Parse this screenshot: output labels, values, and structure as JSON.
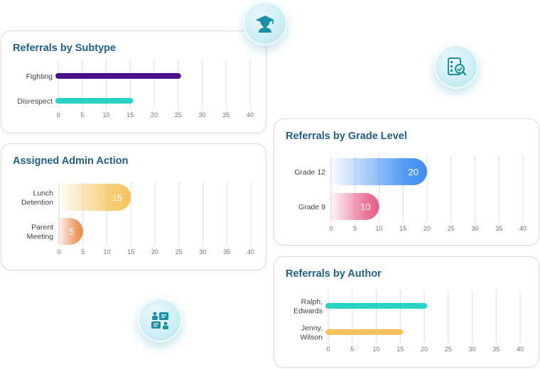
{
  "icons": {
    "graduate": "graduate-icon",
    "report_search": "report-search-icon",
    "dashboard": "dashboard-icon"
  },
  "colors": {
    "title": "#1f5f8b",
    "purple": "#4b0f8a",
    "teal": "#2ad1c4",
    "yellow": "#f5c35a",
    "orange": "#ea8a4a",
    "blue": "#3d8cf0",
    "pink": "#e85d86",
    "grid": "#d9dce1"
  },
  "chart_data": [
    {
      "id": "subtype",
      "type": "bar",
      "orientation": "horizontal",
      "title": "Referrals by Subtype",
      "categories": [
        "Fighting",
        "Disrespect"
      ],
      "values": [
        25,
        15
      ],
      "colors": [
        "#4b0f8a",
        "#2ad1c4"
      ],
      "style": "thin",
      "show_values": false,
      "xlim": [
        0,
        40
      ],
      "xticks": [
        0,
        5,
        10,
        15,
        20,
        25,
        30,
        35,
        40
      ],
      "grid": true
    },
    {
      "id": "admin_action",
      "type": "bar",
      "orientation": "horizontal",
      "title": "Assigned Admin Action",
      "categories": [
        "Lunch\nDetention",
        "Parent\nMeeting"
      ],
      "values": [
        15,
        5
      ],
      "colors": [
        "#f5c35a",
        "#ea8a4a"
      ],
      "style": "thick",
      "show_values": true,
      "xlim": [
        0,
        40
      ],
      "xticks": [
        0,
        5,
        10,
        15,
        20,
        25,
        30,
        35,
        40
      ],
      "grid": true
    },
    {
      "id": "grade_level",
      "type": "bar",
      "orientation": "horizontal",
      "title": "Referrals by Grade Level",
      "categories": [
        "Grade 12",
        "Grade 9"
      ],
      "values": [
        20,
        10
      ],
      "colors": [
        "#3d8cf0",
        "#e85d86"
      ],
      "style": "thick",
      "show_values": true,
      "xlim": [
        0,
        40
      ],
      "xticks": [
        0,
        5,
        10,
        15,
        20,
        25,
        30,
        35,
        40
      ],
      "grid": true
    },
    {
      "id": "author",
      "type": "bar",
      "orientation": "horizontal",
      "title": "Referrals by Author",
      "categories": [
        "Ralph,\nEdwards",
        "Jenny,\nWilson"
      ],
      "values": [
        20,
        15
      ],
      "colors": [
        "#2ad1c4",
        "#f5c35a"
      ],
      "style": "thin",
      "show_values": false,
      "xlim": [
        0,
        40
      ],
      "xticks": [
        0,
        5,
        10,
        15,
        20,
        25,
        30,
        35,
        40
      ],
      "grid": true
    }
  ]
}
